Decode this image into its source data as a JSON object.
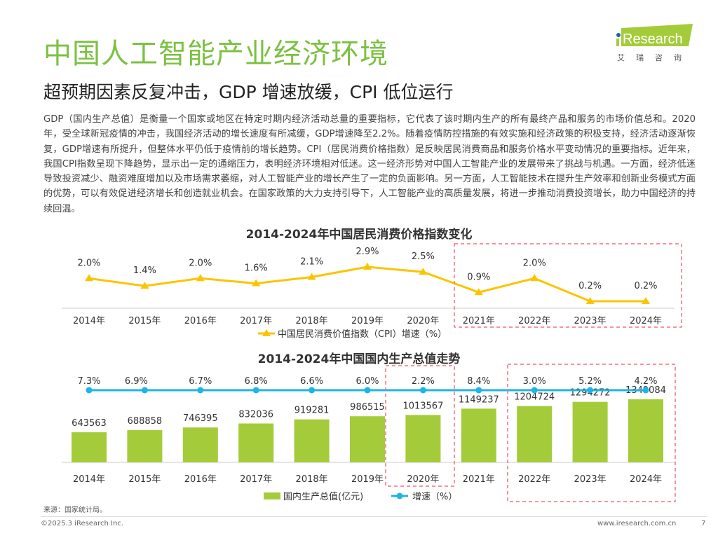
{
  "header": {
    "title": "中国人工智能产业经济环境",
    "subtitle": "超预期因素反复冲击，GDP 增速放缓，CPI 低位运行",
    "logo": {
      "text": "iResearch",
      "cn": "艾 瑞 咨 询"
    }
  },
  "paragraph": "GDP（国内生产总值）是衡量一个国家或地区在特定时期内经济活动总量的重要指标，它代表了该时期内生产的所有最终产品和服务的市场价值总和。2020年，受全球新冠疫情的冲击，我国经济活动的增长速度有所减缓，GDP增速降至2.2%。随着疫情防控措施的有效实施和经济政策的积极支持，经济活动逐渐恢复，GDP增速有所提升，但整体水平仍低于疫情前的增长趋势。CPI（居民消费价格指数）是反映居民消费商品和服务价格水平变动情况的重要指标。近年来，我国CPI指数呈现下降趋势，显示出一定的通缩压力，表明经济环境相对低迷。这一经济形势对中国人工智能产业的发展带来了挑战与机遇。一方面，经济低迷导致投资减少、融资难度增加以及市场需求萎缩，对人工智能产业的增长产生了一定的负面影响。另一方面，人工智能技术在提升生产效率和创新业务模式方面的优势，可以有效促进经济增长和创造就业机会。在国家政策的大力支持引导下，人工智能产业的高质量发展，将进一步推动消费投资增长，助力中国经济的持续回温。",
  "chart_data": [
    {
      "type": "line",
      "title": "2014-2024年中国居民消费价格指数变化",
      "categories": [
        "2014年",
        "2015年",
        "2016年",
        "2017年",
        "2018年",
        "2019年",
        "2020年",
        "2021年",
        "2022年",
        "2023年",
        "2024年"
      ],
      "series": [
        {
          "name": "中国居民消费价值指数（CPI）增速（%）",
          "values": [
            2.0,
            1.4,
            2.0,
            1.6,
            2.1,
            2.9,
            2.5,
            0.9,
            2.0,
            0.2,
            0.2
          ],
          "labels": [
            "2.0%",
            "1.4%",
            "2.0%",
            "1.6%",
            "2.1%",
            "2.9%",
            "2.5%",
            "0.9%",
            "2.0%",
            "0.2%",
            "0.2%"
          ],
          "color": "#fcc400"
        }
      ],
      "legend": "bottom",
      "highlight": [
        "2021年",
        "2024年"
      ]
    },
    {
      "type": "bar",
      "title": "2014-2024年中国国内生产总值走势",
      "categories": [
        "2014年",
        "2015年",
        "2016年",
        "2017年",
        "2018年",
        "2019年",
        "2020年",
        "2021年",
        "2022年",
        "2023年",
        "2024年"
      ],
      "series": [
        {
          "name": "国内生产总值(亿元)",
          "values": [
            643563,
            688858,
            746395,
            832036,
            919281,
            986515,
            1013567,
            1149237,
            1204724,
            1294272,
            1349084
          ],
          "color": "#a4cc3a"
        },
        {
          "name": "增速（%）",
          "type": "line",
          "values": [
            7.3,
            6.9,
            6.7,
            6.8,
            6.6,
            6.0,
            2.2,
            8.4,
            3.0,
            5.2,
            4.2
          ],
          "labels": [
            "7.3%",
            "6.9%",
            "6.7%",
            "6.8%",
            "6.6%",
            "6.0%",
            "2.2%",
            "8.4%",
            "3.0%",
            "5.2%",
            "4.2%"
          ],
          "color": "#1cb4ea"
        }
      ],
      "legend": "bottom",
      "highlight": [
        [
          "2020年"
        ],
        [
          "2022年",
          "2024年"
        ]
      ]
    }
  ],
  "footer": {
    "source": "来源：国家统计局。",
    "copyright": "©2025.3 iResearch Inc.",
    "url": "www.iresearch.com.cn",
    "page": "7"
  }
}
